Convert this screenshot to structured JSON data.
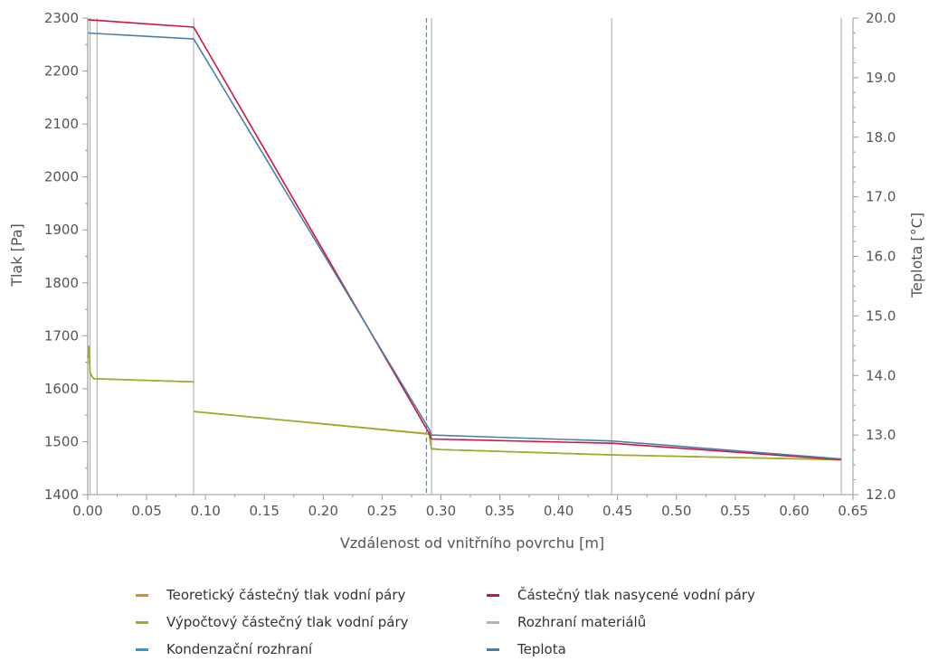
{
  "chart_data": {
    "type": "line",
    "xlabel": "Vzdálenost od vnitřního povrchu [m]",
    "ylabel": "Tlak [Pa]",
    "y2label": "Teplota [°C]",
    "xlim": [
      0.0,
      0.65
    ],
    "ylim": [
      1400,
      2300
    ],
    "y2lim": [
      12.0,
      20.0
    ],
    "x_ticks": [
      "0.00",
      "0.05",
      "0.10",
      "0.15",
      "0.20",
      "0.25",
      "0.30",
      "0.35",
      "0.40",
      "0.45",
      "0.50",
      "0.55",
      "0.60",
      "0.65"
    ],
    "x_tick_values": [
      0.0,
      0.05,
      0.1,
      0.15,
      0.2,
      0.25,
      0.3,
      0.35,
      0.4,
      0.45,
      0.5,
      0.55,
      0.6,
      0.65
    ],
    "y_ticks": [
      "1400",
      "1500",
      "1600",
      "1700",
      "1800",
      "1900",
      "2000",
      "2100",
      "2200",
      "2300"
    ],
    "y_tick_values": [
      1400,
      1500,
      1600,
      1700,
      1800,
      1900,
      2000,
      2100,
      2200,
      2300
    ],
    "y2_ticks": [
      "12.0",
      "13.0",
      "14.0",
      "15.0",
      "16.0",
      "17.0",
      "18.0",
      "19.0",
      "20.0"
    ],
    "y2_tick_values": [
      12,
      13,
      14,
      15,
      16,
      17,
      18,
      19,
      20
    ],
    "grid": false,
    "legend_position": "bottom",
    "series": [
      {
        "name": "Teoretický částečný tlak vodní páry",
        "color": "#e08a1e",
        "axis": "left",
        "segments": [
          [
            [
              0.0,
              1660
            ],
            [
              0.001,
              1680
            ],
            [
              0.002,
              1630
            ],
            [
              0.005,
              1619
            ],
            [
              0.09,
              1613
            ]
          ],
          [
            [
              0.09,
              1557
            ],
            [
              0.29,
              1515
            ]
          ],
          [
            [
              0.29,
              1515
            ],
            [
              0.292,
              1487
            ],
            [
              0.3,
              1485
            ],
            [
              0.445,
              1475
            ],
            [
              0.64,
              1466
            ]
          ]
        ]
      },
      {
        "name": "Výpočtový částečný tlak vodní páry",
        "color": "#9aad2e",
        "axis": "left",
        "segments": [
          [
            [
              0.0,
              1658
            ],
            [
              0.001,
              1675
            ],
            [
              0.002,
              1628
            ],
            [
              0.005,
              1619
            ],
            [
              0.09,
              1613
            ]
          ],
          [
            [
              0.09,
              1557
            ],
            [
              0.29,
              1514
            ]
          ],
          [
            [
              0.29,
              1514
            ],
            [
              0.292,
              1486
            ],
            [
              0.3,
              1485
            ],
            [
              0.445,
              1475
            ],
            [
              0.64,
              1466
            ]
          ]
        ]
      },
      {
        "name": "Částečný tlak nasycené vodní páry",
        "color": "#d0143c",
        "axis": "left",
        "segments": [
          [
            [
              0.0,
              2297
            ],
            [
              0.09,
              2283
            ],
            [
              0.29,
              1516
            ],
            [
              0.292,
              1505
            ],
            [
              0.445,
              1497
            ],
            [
              0.64,
              1466
            ]
          ]
        ]
      },
      {
        "name": "Teplota",
        "color": "#4a7fa8",
        "axis": "right",
        "segments": [
          [
            [
              0.0,
              19.75
            ],
            [
              0.09,
              19.65
            ],
            [
              0.29,
              13.1
            ],
            [
              0.292,
              13.0
            ],
            [
              0.445,
              12.9
            ],
            [
              0.64,
              12.6
            ]
          ]
        ]
      }
    ],
    "material_interfaces": {
      "name": "Rozhraní materiálů",
      "color": "#b4b4b4",
      "x": [
        0.0,
        0.002,
        0.008,
        0.09,
        0.292,
        0.445,
        0.64
      ]
    },
    "condensation_interfaces": {
      "name": "Kondenzační rozhraní",
      "color": "#2a9ad8",
      "x": [
        0.29
      ]
    },
    "legend": [
      {
        "label": "Teoretický částečný tlak vodní páry",
        "color": "#e08a1e"
      },
      {
        "label": "Výpočtový částečný tlak vodní páry",
        "color": "#9aad2e"
      },
      {
        "label": "Kondenzační rozhraní",
        "color": "#2a9ad8"
      },
      {
        "label": "Částečný tlak nasycené vodní páry",
        "color": "#d0143c"
      },
      {
        "label": "Rozhraní materiálů",
        "color": "#b4b4b4"
      },
      {
        "label": "Teplota",
        "color": "#4a7fa8"
      }
    ]
  }
}
